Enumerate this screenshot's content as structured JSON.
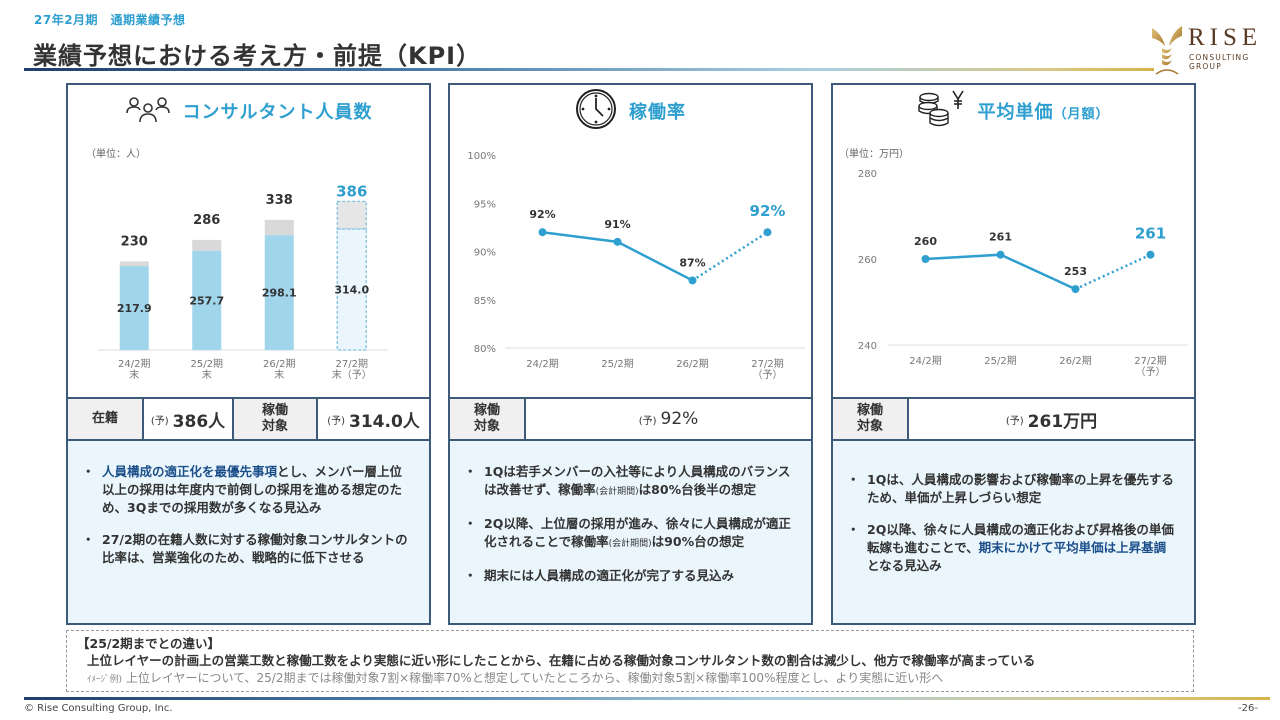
{
  "header": {
    "subtitle": "27年2月期　通期業績予想",
    "title": "業績予想における考え方・前提（KPI）",
    "logo": {
      "name": "RISE",
      "sub_line1": "CONSULTING",
      "sub_line2": "GROUP"
    }
  },
  "colors": {
    "accent": "#2f9fd0",
    "navy": "#3d5a7a",
    "bar_fill": "#a0d5ec",
    "bar_gray": "#d9d9d9",
    "highlight_text": "#1c4f8a",
    "notes_bg": "#eaf6fc"
  },
  "panels": [
    {
      "icon": "people-icon",
      "title": "コンサルタント人員数",
      "unit": "（単位：人）",
      "kpi": [
        {
          "label": "在籍",
          "prefix": "(予)",
          "value": "386人"
        },
        {
          "label": "稼働\n対象",
          "prefix": "(予)",
          "value": "314.0人"
        }
      ],
      "notes": [
        {
          "highlight": "人員構成の適正化を最優先事項",
          "text": "とし、メンバー層上位以上の採用は年度内で前倒しの採用を進める想定のため、3Qまでの採用数が多くなる見込み"
        },
        {
          "highlight": "",
          "text": "27/2期の在籍人数に対する稼働対象コンサルタントの比率は、営業強化のため、戦略的に低下させる"
        }
      ]
    },
    {
      "icon": "clock-icon",
      "title": "稼働率",
      "kpi": [
        {
          "label": "稼働\n対象",
          "prefix": "(予)",
          "value": "92%"
        }
      ],
      "notes": [
        {
          "pre": "1Qは若手メンバーの入社等により人員構成のバランスは改善せず、稼働率",
          "tiny": "(会計期間)",
          "post": "は80%台後半の想定"
        },
        {
          "pre": "2Q以降、上位層の採用が進み、徐々に人員構成が適正化されることで稼働率",
          "tiny": "(会計期間)",
          "post": "は90%台の想定"
        },
        {
          "pre": "期末には人員構成の適正化が完了する見込み",
          "tiny": "",
          "post": ""
        }
      ]
    },
    {
      "icon": "coins-yen-icon",
      "title": "平均単価",
      "title_suffix": "（月額）",
      "unit": "（単位：万円）",
      "kpi": [
        {
          "label": "稼働\n対象",
          "prefix": "(予)",
          "value": "261万円"
        }
      ],
      "notes": [
        {
          "pre": "1Qは、人員構成の影響および稼働率の上昇を優先するため、単価が上昇しづらい想定",
          "highlight": "",
          "post": ""
        },
        {
          "pre": "2Q以降、徐々に人員構成の適正化および昇格後の単価転嫁も進むことで、",
          "highlight": "期末にかけて平均単価は上昇基調",
          "post": "となる見込み"
        }
      ]
    }
  ],
  "chart_data": [
    {
      "type": "bar",
      "title": "コンサルタント人員数",
      "unit": "（単位：人）",
      "categories": [
        "24/2期\n末",
        "25/2期\n末",
        "26/2期\n末",
        "27/2期\n末（予）"
      ],
      "series": [
        {
          "name": "稼働対象",
          "values": [
            217.9,
            257.7,
            298.1,
            314.0
          ]
        },
        {
          "name": "在籍",
          "values": [
            230,
            286,
            338,
            386
          ]
        }
      ],
      "total_labels": [
        "230",
        "286",
        "338",
        "386"
      ],
      "inner_labels": [
        "217.9",
        "257.7",
        "298.1",
        "314.0"
      ],
      "forecast_index": 3,
      "ylim": [
        0,
        400
      ]
    },
    {
      "type": "line",
      "title": "稼働率",
      "categories": [
        "24/2期",
        "25/2期",
        "26/2期",
        "27/2期\n（予）"
      ],
      "values": [
        92,
        91,
        87,
        92
      ],
      "labels": [
        "92%",
        "91%",
        "87%",
        "92%"
      ],
      "yticks": [
        "100%",
        "95%",
        "90%",
        "85%",
        "80%"
      ],
      "ylim": [
        80,
        100
      ],
      "forecast_index": 3
    },
    {
      "type": "line",
      "title": "平均単価（月額）",
      "unit": "（単位：万円）",
      "categories": [
        "24/2期",
        "25/2期",
        "26/2期",
        "27/2期\n（予）"
      ],
      "values": [
        260,
        261,
        253,
        261
      ],
      "labels": [
        "260",
        "261",
        "253",
        "261"
      ],
      "yticks": [
        "280",
        "260",
        "240"
      ],
      "ylim": [
        240,
        280
      ],
      "forecast_index": 3
    }
  ],
  "diff_box": {
    "title": "【25/2期までとの違い】",
    "main": "上位レイヤーの計画上の営業工数と稼働工数をより実態に近い形にしたことから、在籍に占める稼働対象コンサルタント数の割合は減少し、他方で稼働率が高まっている",
    "example_prefix": "ｲﾒｰｼﾞ例)",
    "example": "上位レイヤーについて、25/2期までは稼働対象7割×稼働率70%と想定していたところから、稼働対象5割×稼働率100%程度とし、より実態に近い形へ"
  },
  "footer": {
    "copyright": "© Rise Consulting Group, Inc.",
    "page": "-26-"
  }
}
